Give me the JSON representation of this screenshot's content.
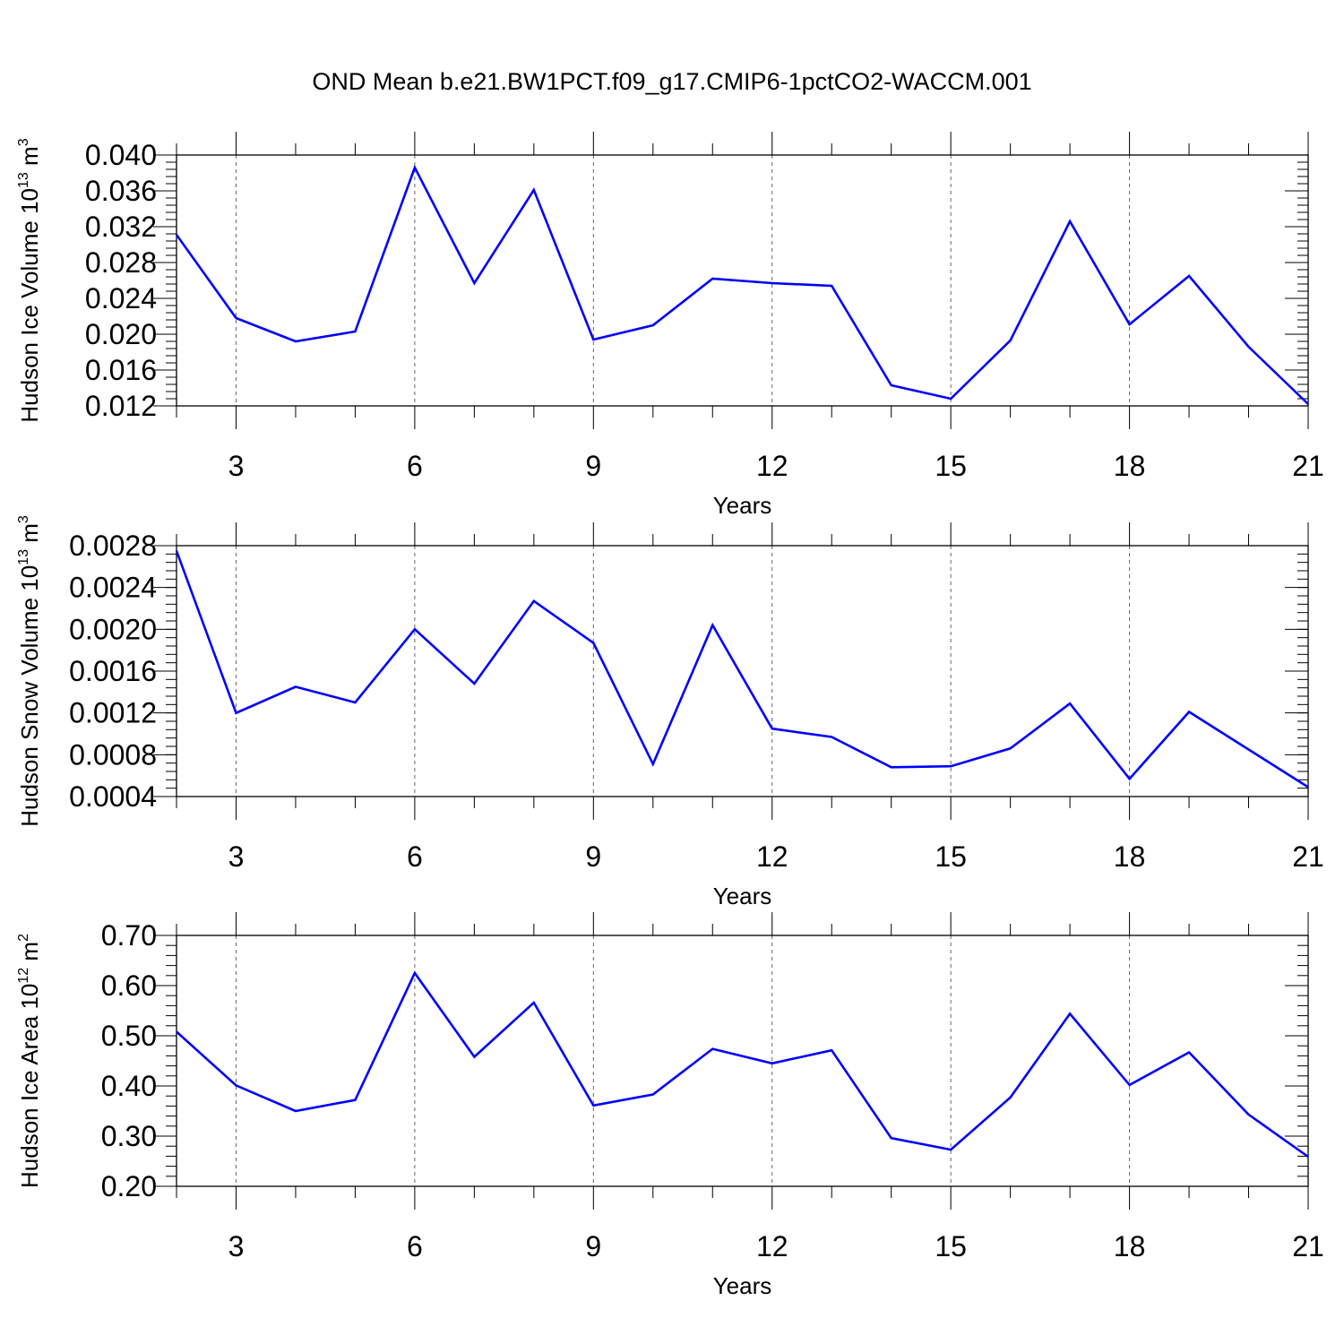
{
  "title": "OND Mean b.e21.BW1PCT.f09_g17.CMIP6-1pctCO2-WACCM.001",
  "line_color": "#0000ff",
  "chart_data": [
    {
      "type": "line",
      "ylabel": {
        "main": "Hudson Ice Volume 10",
        "exp": "13",
        "unit": " m",
        "unit_exp": "3"
      },
      "xlabel": "Years",
      "xlim": [
        2,
        21
      ],
      "xticks": [
        3,
        6,
        9,
        12,
        15,
        18,
        21
      ],
      "ylim": [
        0.012,
        0.04
      ],
      "yticks": [
        0.012,
        0.016,
        0.02,
        0.024,
        0.028,
        0.032,
        0.036,
        0.04
      ],
      "ytick_labels": [
        "0.012",
        "0.016",
        "0.020",
        "0.024",
        "0.028",
        "0.032",
        "0.036",
        "0.040"
      ],
      "yminor_step": 0.0008,
      "grid": "vertical dashed at major x ticks",
      "x": [
        2,
        3,
        4,
        5,
        6,
        7,
        8,
        9,
        10,
        11,
        12,
        13,
        14,
        15,
        16,
        17,
        18,
        19,
        20,
        21
      ],
      "values": [
        0.0311,
        0.0218,
        0.0192,
        0.0203,
        0.0386,
        0.0257,
        0.0361,
        0.0194,
        0.021,
        0.0262,
        0.0257,
        0.0254,
        0.0143,
        0.0128,
        0.0193,
        0.0326,
        0.0211,
        0.0265,
        0.0186,
        0.0122
      ]
    },
    {
      "type": "line",
      "ylabel": {
        "main": "Hudson Snow Volume 10",
        "exp": "13",
        "unit": " m",
        "unit_exp": "3"
      },
      "xlabel": "Years",
      "xlim": [
        2,
        21
      ],
      "xticks": [
        3,
        6,
        9,
        12,
        15,
        18,
        21
      ],
      "ylim": [
        0.0004,
        0.0028
      ],
      "yticks": [
        0.0004,
        0.0008,
        0.0012,
        0.0016,
        0.002,
        0.0024,
        0.0028
      ],
      "ytick_labels": [
        "0.0004",
        "0.0008",
        "0.0012",
        "0.0016",
        "0.0020",
        "0.0024",
        "0.0028"
      ],
      "yminor_step": 8e-05,
      "grid": "vertical dashed at major x ticks",
      "x": [
        2,
        3,
        4,
        5,
        6,
        7,
        8,
        9,
        10,
        11,
        12,
        13,
        14,
        15,
        16,
        17,
        18,
        19,
        20,
        21
      ],
      "values": [
        0.00275,
        0.0012,
        0.00145,
        0.0013,
        0.002,
        0.00148,
        0.00227,
        0.00187,
        0.00071,
        0.00204,
        0.00105,
        0.00097,
        0.00068,
        0.00069,
        0.00086,
        0.00129,
        0.00057,
        0.00121,
        0.00085,
        0.00049
      ]
    },
    {
      "type": "line",
      "ylabel": {
        "main": "Hudson Ice Area 10",
        "exp": "12",
        "unit": " m",
        "unit_exp": "2"
      },
      "xlabel": "Years",
      "xlim": [
        2,
        21
      ],
      "xticks": [
        3,
        6,
        9,
        12,
        15,
        18,
        21
      ],
      "ylim": [
        0.2,
        0.7
      ],
      "yticks": [
        0.2,
        0.3,
        0.4,
        0.5,
        0.6,
        0.7
      ],
      "ytick_labels": [
        "0.20",
        "0.30",
        "0.40",
        "0.50",
        "0.60",
        "0.70"
      ],
      "yminor_step": 0.02,
      "grid": "vertical dashed at major x ticks",
      "x": [
        2,
        3,
        4,
        5,
        6,
        7,
        8,
        9,
        10,
        11,
        12,
        13,
        14,
        15,
        16,
        17,
        18,
        19,
        20,
        21
      ],
      "values": [
        0.508,
        0.401,
        0.35,
        0.372,
        0.625,
        0.458,
        0.566,
        0.361,
        0.383,
        0.474,
        0.445,
        0.471,
        0.296,
        0.273,
        0.377,
        0.544,
        0.402,
        0.467,
        0.343,
        0.259
      ]
    }
  ]
}
